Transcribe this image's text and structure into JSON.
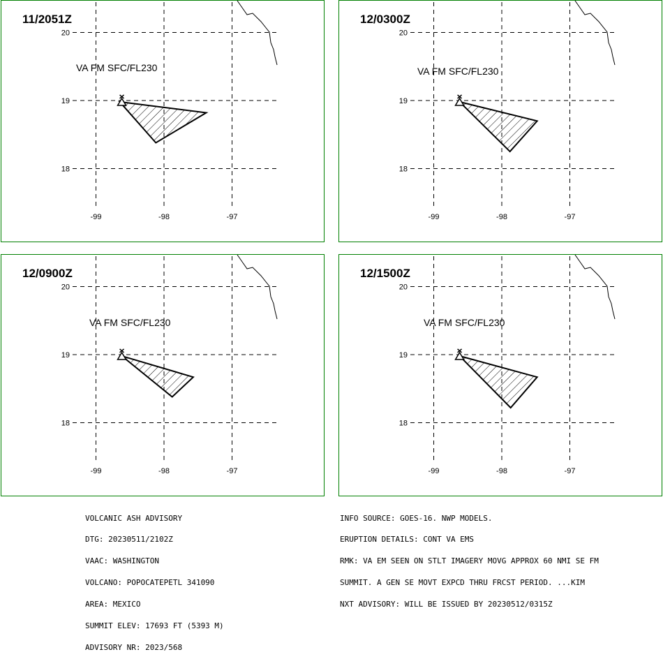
{
  "panels": [
    {
      "time": "11/2051Z",
      "label": "VA FM SFC/FL230",
      "polygon": [
        [
          -98.65,
          18.98
        ],
        [
          -97.38,
          18.82
        ],
        [
          -98.12,
          18.38
        ],
        [
          -98.65,
          18.98
        ]
      ]
    },
    {
      "time": "12/0300Z",
      "label": "VA FM SFC/FL230",
      "polygon": [
        [
          -98.62,
          18.98
        ],
        [
          -97.48,
          18.7
        ],
        [
          -97.88,
          18.25
        ],
        [
          -98.62,
          18.98
        ]
      ]
    },
    {
      "time": "12/0900Z",
      "label": "VA FM SFC/FL230",
      "polygon": [
        [
          -98.62,
          18.98
        ],
        [
          -97.57,
          18.67
        ],
        [
          -97.88,
          18.38
        ],
        [
          -98.62,
          18.98
        ]
      ]
    },
    {
      "time": "12/1500Z",
      "label": "VA FM SFC/FL230",
      "polygon": [
        [
          -98.62,
          18.98
        ],
        [
          -97.48,
          18.67
        ],
        [
          -97.87,
          18.22
        ],
        [
          -98.62,
          18.98
        ]
      ]
    }
  ],
  "axes": {
    "lat_ticks": [
      "20",
      "19",
      "18"
    ],
    "lon_ticks": [
      "-99",
      "-98",
      "-97"
    ]
  },
  "colors": {
    "frame": "#008000",
    "ink": "#000000"
  },
  "volcano_icon": "volcano-symbol-icon",
  "advisory_left": [
    "VOLCANIC ASH ADVISORY",
    "DTG: 20230511/2102Z",
    "VAAC: WASHINGTON",
    "VOLCANO: POPOCATEPETL 341090",
    "AREA: MEXICO",
    "SUMMIT ELEV: 17693 FT (5393 M)",
    "ADVISORY NR: 2023/568"
  ],
  "advisory_right": [
    "INFO SOURCE: GOES-16. NWP MODELS.",
    "ERUPTION DETAILS: CONT VA EMS",
    "RMK: VA EM SEEN ON STLT IMAGERY MOVG APPROX 60 NMI SE FM",
    "SUMMIT. A GEN SE MOVT EXPCD THRU FRCST PERIOD. ...KIM",
    "NXT ADVISORY: WILL BE ISSUED BY 20230512/0315Z"
  ]
}
